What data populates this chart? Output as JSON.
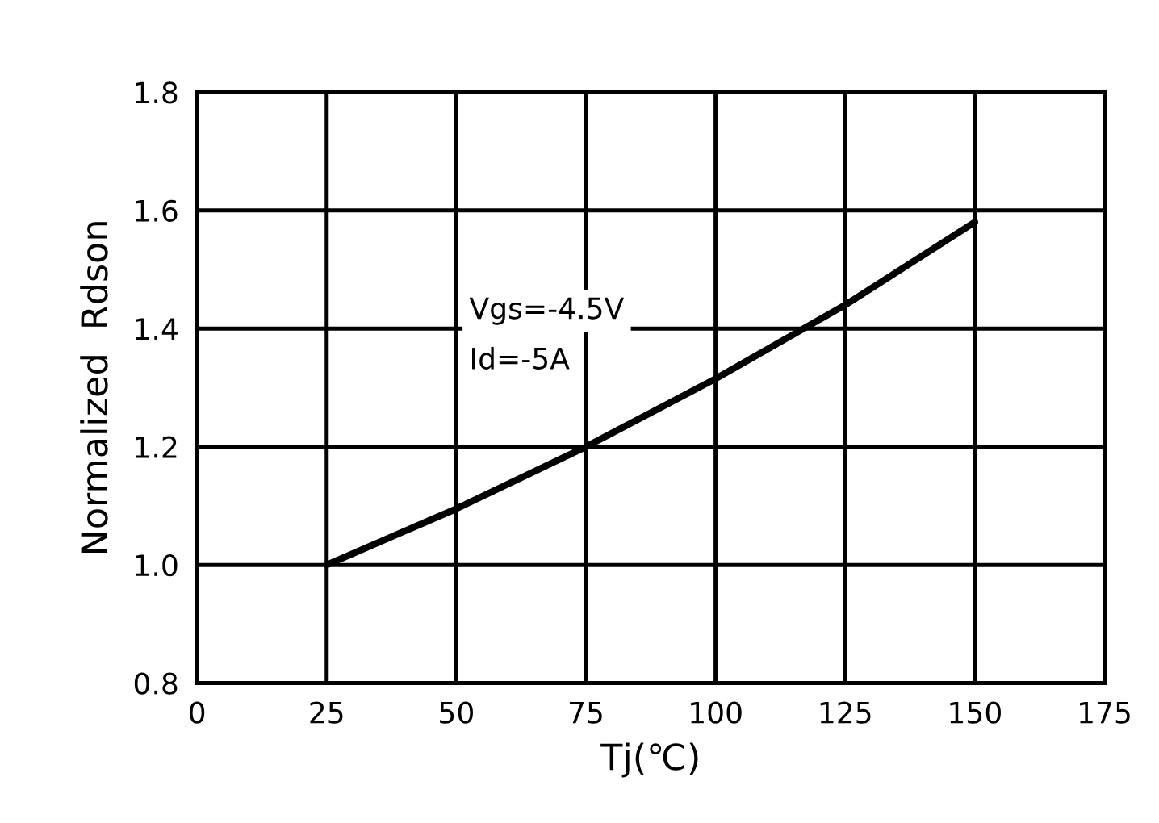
{
  "chart_data": {
    "type": "line",
    "xlabel": "Tj(℃)",
    "ylabel": "Normalized  Rdson",
    "x": [
      25,
      50,
      75,
      100,
      125,
      150
    ],
    "series": [
      {
        "color": "#000000",
        "values": [
          1.0,
          1.095,
          1.2,
          1.315,
          1.44,
          1.58
        ]
      }
    ],
    "xlim": [
      0,
      175
    ],
    "xticks": [
      0,
      25,
      50,
      75,
      100,
      125,
      150,
      175
    ],
    "ylim": [
      0.8,
      1.8
    ],
    "yticks": [
      {
        "value": 0.8,
        "label": "0.8"
      },
      {
        "value": 1.0,
        "label": "1.0"
      },
      {
        "value": 1.2,
        "label": "1.2"
      },
      {
        "value": 1.4,
        "label": "1.4"
      },
      {
        "value": 1.6,
        "label": "1.6"
      },
      {
        "value": 1.8,
        "label": "1.8"
      }
    ],
    "grid": true,
    "line_style": "solid",
    "marker": "none",
    "annotations": [
      "Vgs=-4.5V",
      "Id=-5A"
    ]
  }
}
